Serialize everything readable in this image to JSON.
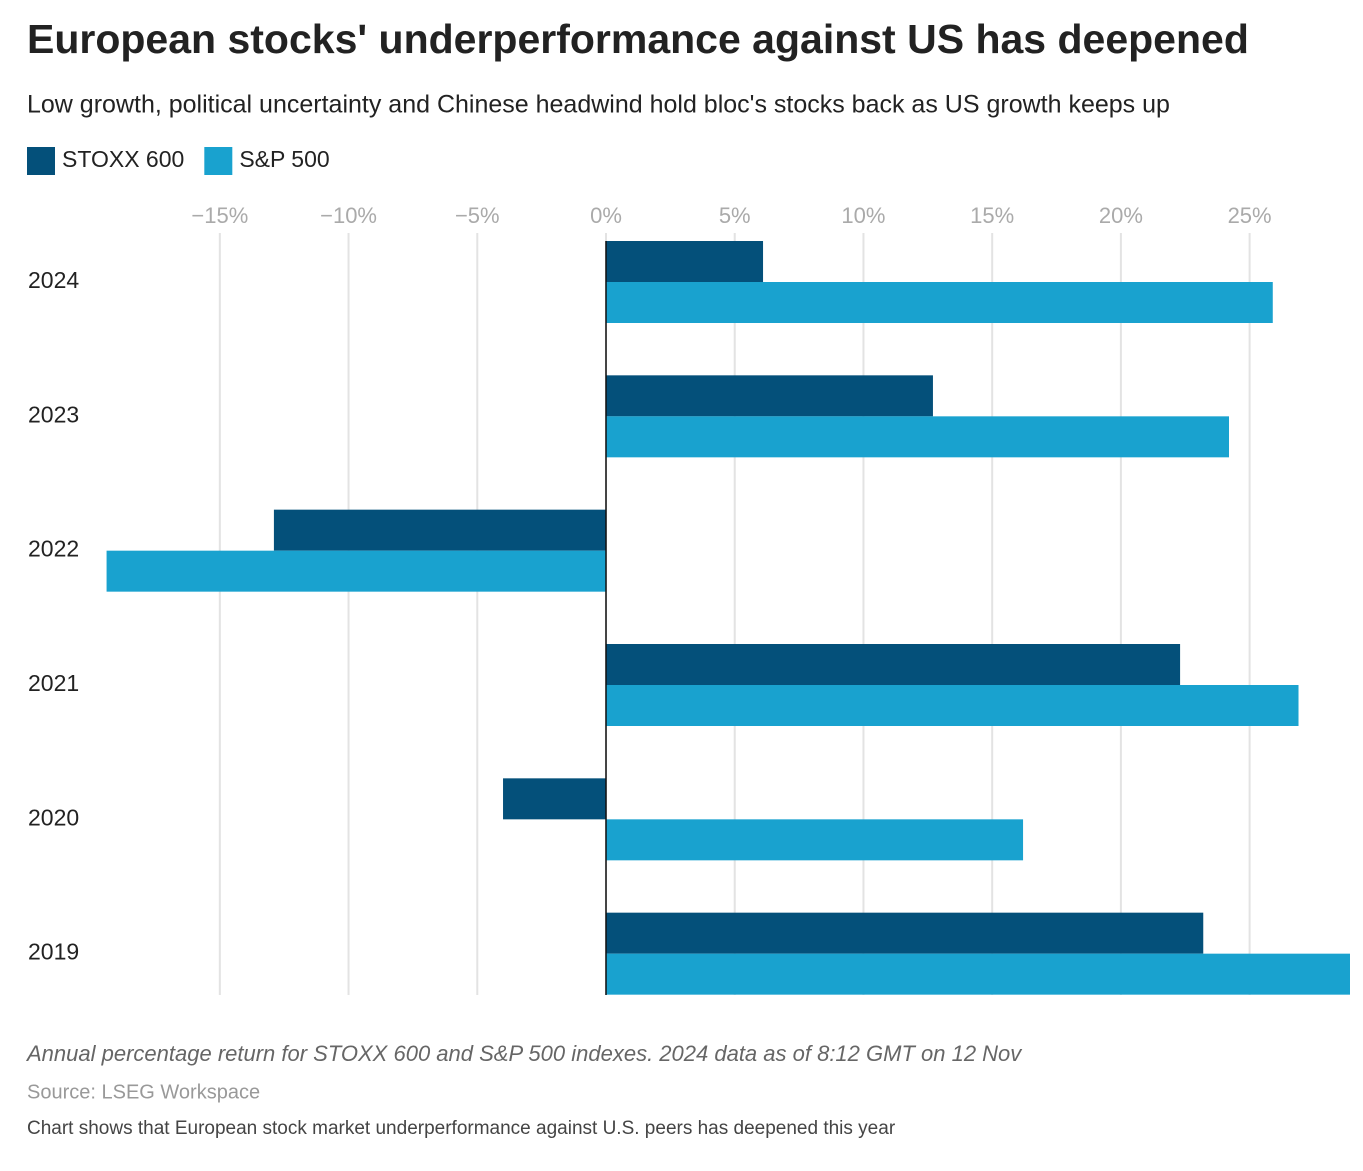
{
  "chart_data": {
    "type": "bar",
    "horizontal": true,
    "title": "European stocks' underperformance against US has deepened",
    "subtitle": "Low growth, political uncertainty and Chinese headwind hold bloc's stocks back as US growth keeps up",
    "categories": [
      "2024",
      "2023",
      "2022",
      "2021",
      "2020",
      "2019"
    ],
    "series": [
      {
        "name": "STOXX 600",
        "color": "#04507a",
        "values": [
          6.1,
          12.7,
          -12.9,
          22.3,
          -4.0,
          23.2
        ]
      },
      {
        "name": "S&P 500",
        "color": "#19a2cf",
        "values": [
          25.9,
          24.2,
          -19.4,
          26.9,
          16.2,
          28.9
        ]
      }
    ],
    "xlim": [
      -19.5,
      28.9
    ],
    "xticks": [
      {
        "value": -15,
        "label": "−15%"
      },
      {
        "value": -10,
        "label": "−10%"
      },
      {
        "value": -5,
        "label": "−5%"
      },
      {
        "value": 0,
        "label": "0%"
      },
      {
        "value": 5,
        "label": "5%"
      },
      {
        "value": 10,
        "label": "10%"
      },
      {
        "value": 15,
        "label": "15%"
      },
      {
        "value": 20,
        "label": "20%"
      },
      {
        "value": 25,
        "label": "25%"
      }
    ],
    "grid": true,
    "note": "Annual percentage return for STOXX 600 and S&P 500 indexes. 2024 data as of 8:12 GMT on 12 Nov",
    "source": "Source: LSEG Workspace",
    "description": "Chart shows that European stock market underperformance against U.S. peers has deepened this year"
  }
}
